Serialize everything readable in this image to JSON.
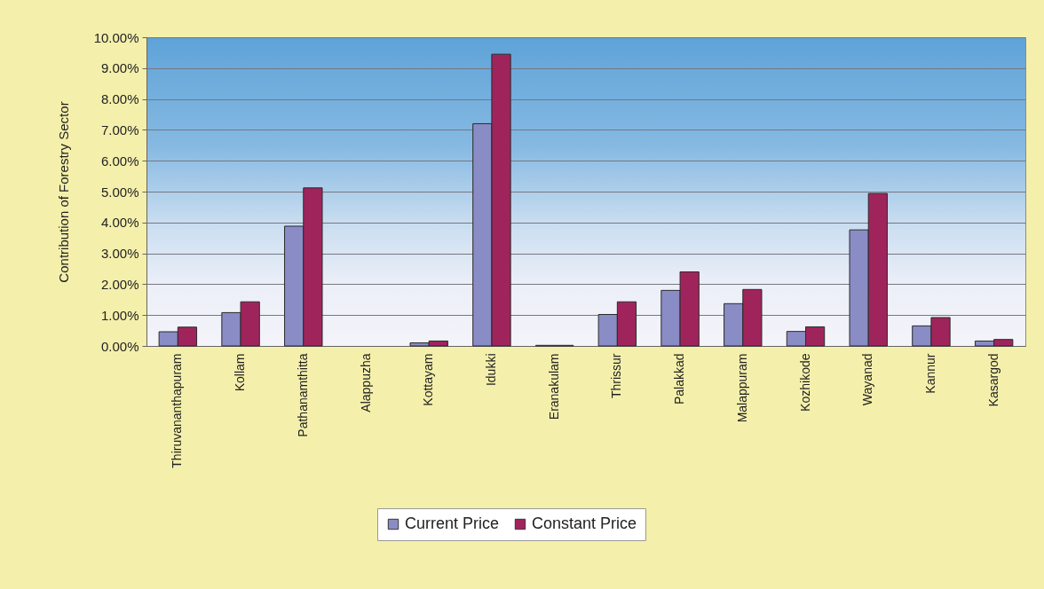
{
  "chart_data": {
    "type": "bar",
    "ylabel": "Contribution of Forestry Sector",
    "categories": [
      "Thiruvananthapuram",
      "Kollam",
      "Pathanamthitta",
      "Alappuzha",
      "Kottayam",
      "Idukki",
      "Eranakulam",
      "Thrissur",
      "Palakkad",
      "Malappuram",
      "Kozhikode",
      "Wayanad",
      "Kannur",
      "Kasargod"
    ],
    "series": [
      {
        "name": "Current Price",
        "color": "#8a8cc6",
        "values": [
          0.46,
          1.08,
          3.88,
          null,
          0.1,
          7.2,
          0.02,
          1.02,
          1.8,
          1.37,
          0.47,
          3.76,
          0.65,
          0.16
        ]
      },
      {
        "name": "Constant Price",
        "color": "#a0245c",
        "values": [
          0.61,
          1.43,
          5.12,
          null,
          0.16,
          9.45,
          0.02,
          1.43,
          2.4,
          1.83,
          0.62,
          4.94,
          0.92,
          0.21
        ]
      }
    ],
    "ylim": [
      0,
      10
    ],
    "yticks": [
      {
        "value": 0,
        "label": "0.00%"
      },
      {
        "value": 1,
        "label": "1.00%"
      },
      {
        "value": 2,
        "label": "2.00%"
      },
      {
        "value": 3,
        "label": "3.00%"
      },
      {
        "value": 4,
        "label": "4.00%"
      },
      {
        "value": 5,
        "label": "5.00%"
      },
      {
        "value": 6,
        "label": "6.00%"
      },
      {
        "value": 7,
        "label": "7.00%"
      },
      {
        "value": 8,
        "label": "8.00%"
      },
      {
        "value": 9,
        "label": "9.00%"
      },
      {
        "value": 10,
        "label": "10.00%"
      }
    ],
    "grid": "y",
    "legend": "bottom"
  }
}
